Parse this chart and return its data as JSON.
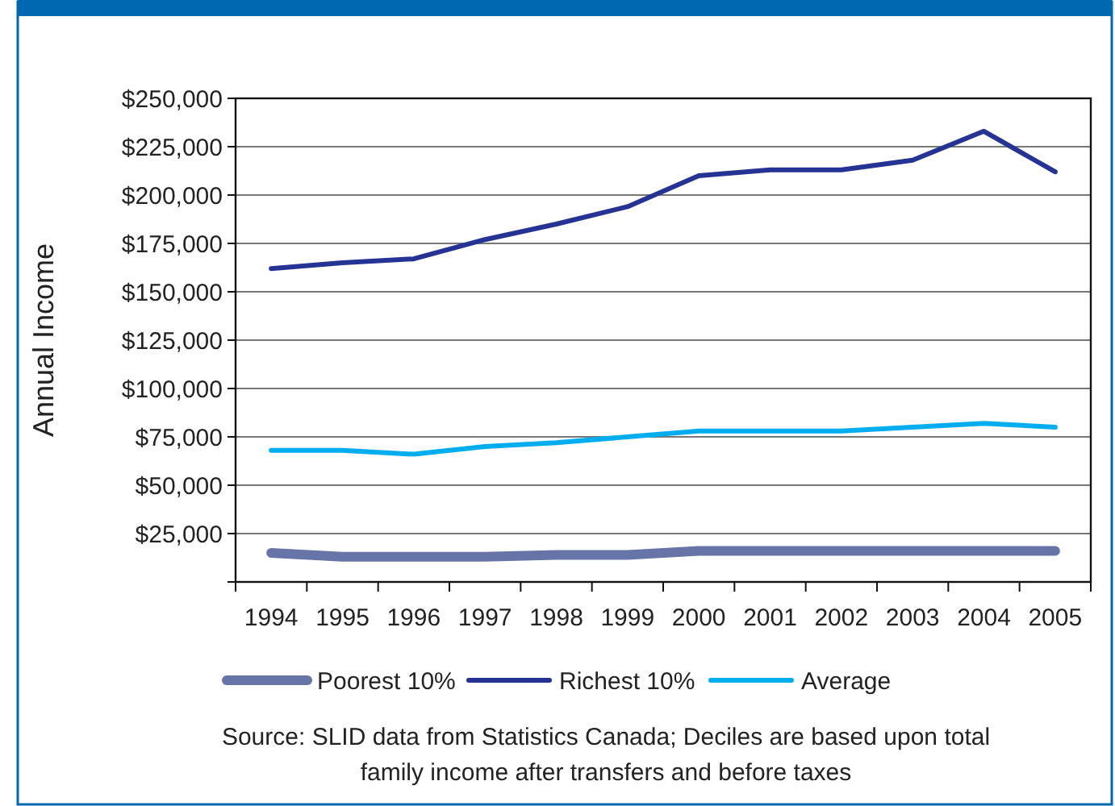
{
  "chart_data": {
    "type": "line",
    "ylabel": "Annual Income",
    "categories": [
      "1994",
      "1995",
      "1996",
      "1997",
      "1998",
      "1999",
      "2000",
      "2001",
      "2002",
      "2003",
      "2004",
      "2005"
    ],
    "series": [
      {
        "name": "Poorest 10%",
        "color": "#6674a8",
        "values": [
          15000,
          13000,
          13000,
          13000,
          14000,
          14000,
          16000,
          16000,
          16000,
          16000,
          16000,
          16000
        ]
      },
      {
        "name": "Richest 10%",
        "color": "#253494",
        "values": [
          162000,
          165000,
          167000,
          177000,
          185000,
          194000,
          210000,
          213000,
          213000,
          218000,
          233000,
          212000
        ]
      },
      {
        "name": "Average",
        "color": "#00aeef",
        "values": [
          68000,
          68000,
          66000,
          70000,
          72000,
          75000,
          78000,
          78000,
          78000,
          80000,
          82000,
          80000
        ]
      }
    ],
    "ylim": [
      0,
      250000
    ],
    "yticks": [
      {
        "value": 0,
        "label": null
      },
      {
        "value": 25000,
        "label": "$25,000"
      },
      {
        "value": 50000,
        "label": "$50,000"
      },
      {
        "value": 75000,
        "label": "$75,000"
      },
      {
        "value": 100000,
        "label": "$100,000"
      },
      {
        "value": 125000,
        "label": "$125,000"
      },
      {
        "value": 150000,
        "label": "$150,000"
      },
      {
        "value": 175000,
        "label": "$175,000"
      },
      {
        "value": 200000,
        "label": "$200,000"
      },
      {
        "value": 225000,
        "label": "$225,000"
      },
      {
        "value": 250000,
        "label": "$250,000"
      }
    ],
    "grid": "y",
    "legend": "bottom",
    "marker": "none",
    "line_style": "solid",
    "annotations": [
      "Source: SLID data from Statistics Canada; Deciles are based upon total family income after transfers and before taxes"
    ]
  }
}
